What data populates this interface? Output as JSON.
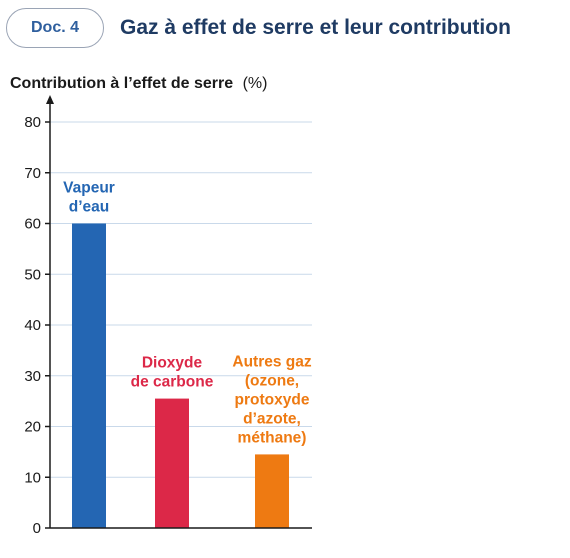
{
  "header": {
    "doc_label": "Doc. 4",
    "title": "Gaz à effet de serre et leur contribution"
  },
  "chart_data": {
    "type": "bar",
    "title": "Gaz à effet de serre et leur contribution",
    "ylabel": "Contribution à l’effet de serre",
    "ylabel_unit": "(%)",
    "xlabel": "",
    "ylim": [
      0,
      80
    ],
    "yticks": [
      0,
      10,
      20,
      30,
      40,
      50,
      60,
      70,
      80
    ],
    "grid": true,
    "legend": "none",
    "bars": [
      {
        "label_lines": [
          "Vapeur",
          "d’eau"
        ],
        "value": 60,
        "color": "#2466b3"
      },
      {
        "label_lines": [
          "Dioxyde",
          "de carbone"
        ],
        "value": 25.5,
        "color": "#dc2848"
      },
      {
        "label_lines": [
          "Autres gaz",
          "(ozone,",
          "protoxyde",
          "d’azote,",
          "méthane)"
        ],
        "value": 14.5,
        "color": "#ee7a12"
      }
    ]
  }
}
